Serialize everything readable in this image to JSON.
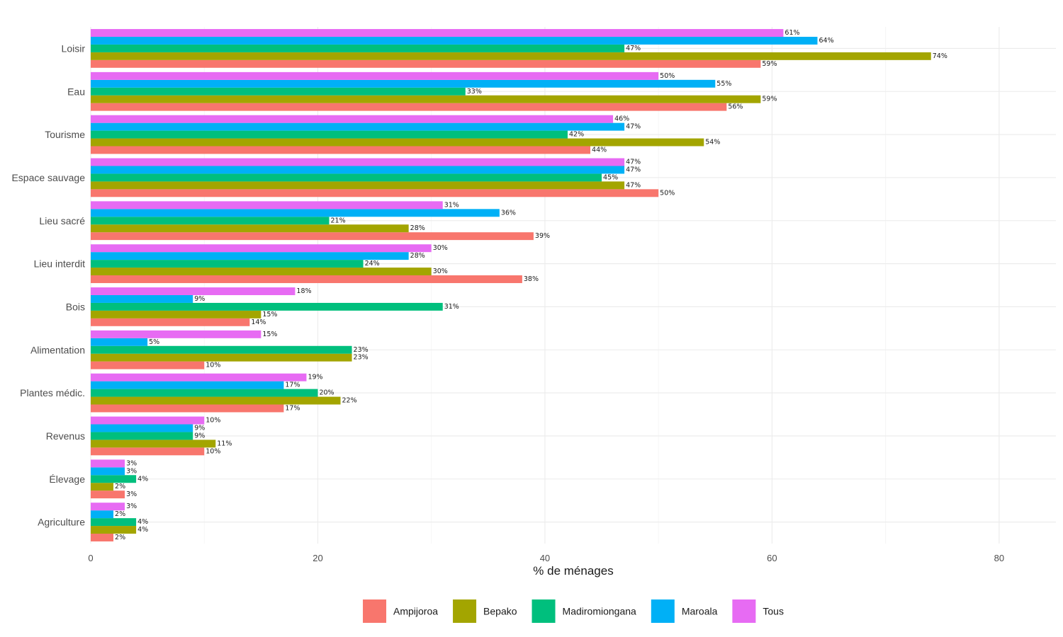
{
  "chart_data": {
    "type": "bar",
    "orientation": "horizontal",
    "xlabel": "% de ménages",
    "ylabel": "",
    "xlim": [
      0,
      85
    ],
    "xticks": [
      0,
      20,
      40,
      60,
      80
    ],
    "grid": true,
    "legend_position": "bottom",
    "label_suffix": "%",
    "categories": [
      "Loisir",
      "Eau",
      "Tourisme",
      "Espace sauvage",
      "Lieu sacré",
      "Lieu interdit",
      "Bois",
      "Alimentation",
      "Plantes médic.",
      "Revenus",
      "Élevage",
      "Agriculture"
    ],
    "series": [
      {
        "name": "Ampijoroa",
        "color": "#F8766D",
        "values": [
          59,
          56,
          44,
          50,
          39,
          38,
          14,
          10,
          17,
          10,
          3,
          2
        ]
      },
      {
        "name": "Bepako",
        "color": "#A3A500",
        "values": [
          74,
          59,
          54,
          47,
          28,
          30,
          15,
          23,
          22,
          11,
          2,
          4
        ]
      },
      {
        "name": "Madiromiongana",
        "color": "#00BF7D",
        "values": [
          47,
          33,
          42,
          45,
          21,
          24,
          31,
          23,
          20,
          9,
          4,
          4
        ]
      },
      {
        "name": "Maroala",
        "color": "#00B0F6",
        "values": [
          64,
          55,
          47,
          47,
          36,
          28,
          9,
          5,
          17,
          9,
          3,
          2
        ]
      },
      {
        "name": "Tous",
        "color": "#E76BF3",
        "values": [
          61,
          50,
          46,
          47,
          31,
          30,
          18,
          15,
          19,
          10,
          3,
          3
        ]
      }
    ]
  }
}
